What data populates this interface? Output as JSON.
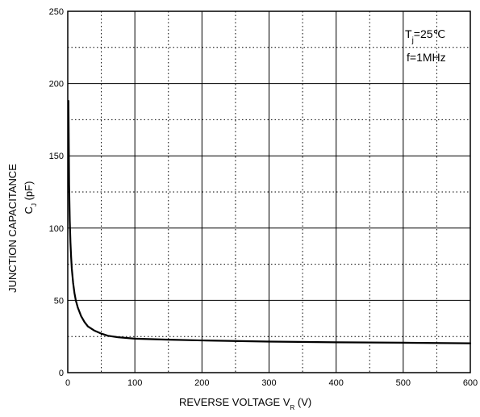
{
  "chart_data": {
    "type": "line",
    "xlim": [
      0,
      600
    ],
    "ylim": [
      0,
      250
    ],
    "x_ticks": [
      0,
      100,
      200,
      300,
      400,
      500,
      600
    ],
    "y_ticks": [
      0,
      50,
      100,
      150,
      200,
      250
    ],
    "x_minor_grid": [
      50,
      150,
      250,
      350,
      450,
      550
    ],
    "y_minor_grid": [
      25,
      75,
      125,
      175,
      225
    ],
    "grid": true,
    "xlabel": {
      "main": "REVERSE VOLTAGE   V",
      "sub": "R",
      "unit": " (V)"
    },
    "ylabel": {
      "line1": "JUNCTION CAPACITANCE",
      "line2_main": "C",
      "line2_sub": "J",
      "line2_unit": " (pF)"
    },
    "annotation": {
      "line1_main": "T",
      "line1_sub": "j",
      "line1_rest": "=25℃",
      "line2": "f=1MHz"
    },
    "series": [
      {
        "x": [
          1,
          2,
          3,
          4,
          5,
          6,
          8,
          10,
          12,
          15,
          20,
          25,
          30,
          40,
          50,
          60,
          75,
          100,
          150,
          200,
          300,
          400,
          500,
          600
        ],
        "y": [
          188,
          130,
          105,
          90,
          80,
          72,
          62,
          55,
          50,
          45,
          39,
          35,
          32,
          29,
          27,
          25.5,
          24.5,
          23.5,
          22.8,
          22.3,
          21.5,
          21,
          20.7,
          20.3
        ],
        "color": "#000000"
      }
    ]
  }
}
